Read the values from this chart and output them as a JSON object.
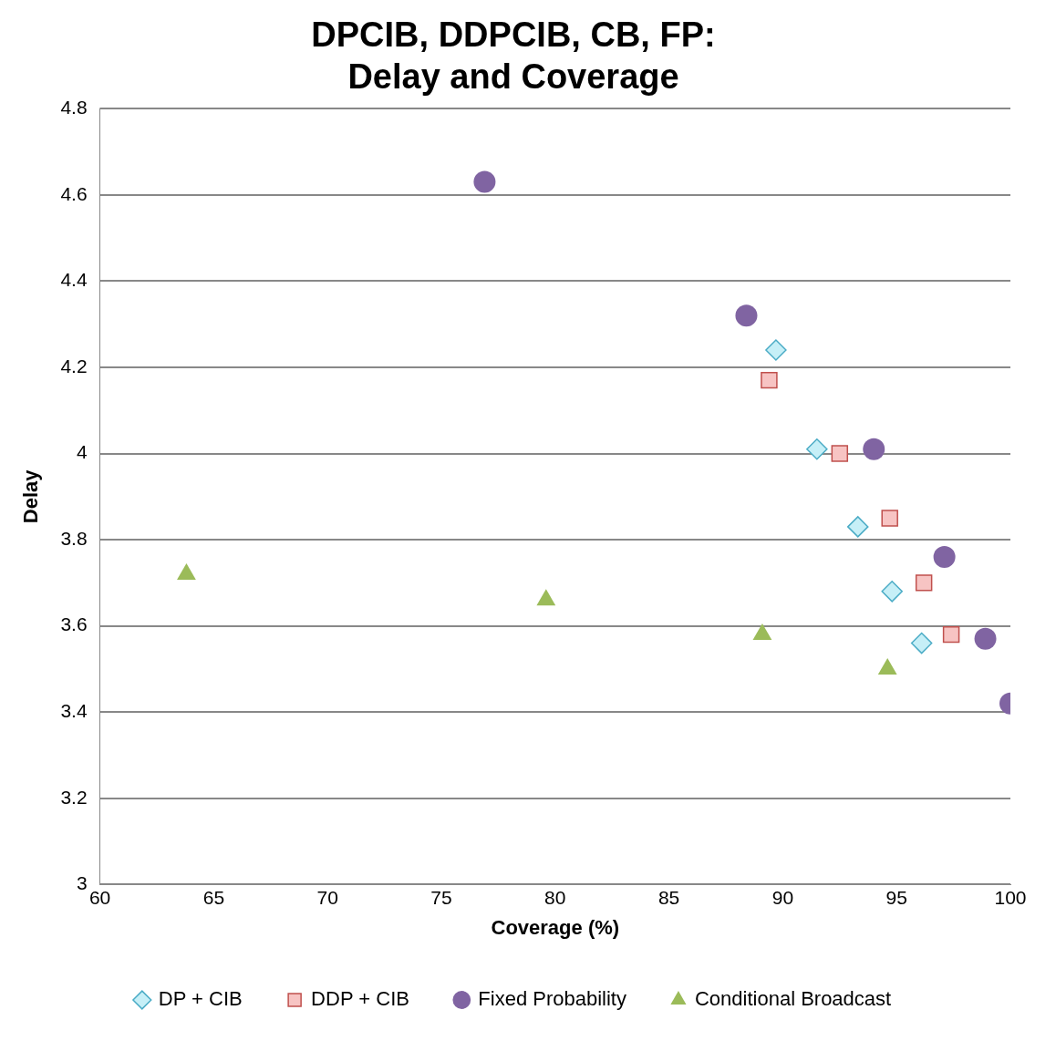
{
  "chart_data": {
    "type": "scatter",
    "title": "DPCIB, DDPCIB, CB, FP:\nDelay and Coverage",
    "xlabel": "Coverage (%)",
    "ylabel": "Delay",
    "xlim": [
      60,
      100
    ],
    "xticks": [
      60,
      65,
      70,
      75,
      80,
      85,
      90,
      95,
      100
    ],
    "ylim": [
      3,
      4.8
    ],
    "yticks": [
      3,
      3.2,
      3.4,
      3.6,
      3.8,
      4,
      4.2,
      4.4,
      4.6,
      4.8
    ],
    "grid": "y",
    "legend": "bottom",
    "series": [
      {
        "name": "DP + CIB",
        "color": "#4bacc6",
        "marker": "diamond",
        "x": [
          89.7,
          91.5,
          93.3,
          94.8,
          96.1
        ],
        "values": [
          4.24,
          4.01,
          3.83,
          3.68,
          3.56
        ]
      },
      {
        "name": "DDP + CIB",
        "color": "#c0504d",
        "marker": "square",
        "x": [
          89.4,
          92.5,
          94.7,
          96.2,
          97.4
        ],
        "values": [
          4.17,
          4.0,
          3.85,
          3.7,
          3.58
        ]
      },
      {
        "name": "Fixed Probability",
        "color": "#8064a2",
        "marker": "circle",
        "x": [
          76.9,
          88.4,
          94.0,
          97.1,
          98.9,
          100
        ],
        "values": [
          4.63,
          4.32,
          4.01,
          3.76,
          3.57,
          3.42
        ]
      },
      {
        "name": "Conditional Broadcast",
        "color": "#9bbb59",
        "marker": "triangle",
        "x": [
          63.8,
          79.6,
          89.1,
          94.6
        ],
        "values": [
          3.72,
          3.66,
          3.58,
          3.5
        ]
      }
    ]
  }
}
